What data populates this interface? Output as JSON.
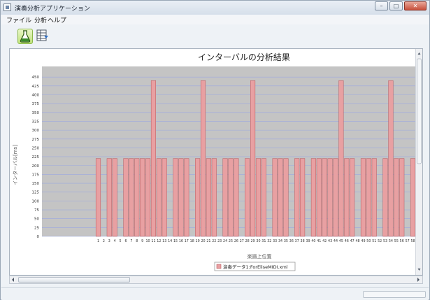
{
  "window": {
    "title": "演奏分析アプリケーション",
    "buttons": {
      "minimize": "–",
      "maximize": "□",
      "close": "✕"
    }
  },
  "menu": {
    "items": [
      "ファイル",
      "分析",
      "ヘルプ"
    ]
  },
  "toolbar": {
    "buttons": [
      {
        "icon": "flask-icon",
        "active": true
      },
      {
        "icon": "table-export-icon",
        "active": false
      }
    ]
  },
  "colors": {
    "bar_fill": "#e8a0a2",
    "bar_stroke": "#b85a5e",
    "plot_bg": "#c4c4c4",
    "grid": "#9ba8e0"
  },
  "chart_data": {
    "type": "bar",
    "title": "インターバルの分析結果",
    "xlabel": "楽譜上位置",
    "ylabel": "インターバル[ms]",
    "ylim": [
      0,
      480
    ],
    "y_ticks": [
      0,
      25,
      50,
      75,
      100,
      125,
      150,
      175,
      200,
      225,
      250,
      275,
      300,
      325,
      350,
      375,
      400,
      425,
      450
    ],
    "grid": true,
    "legend_position": "bottom",
    "series": [
      {
        "name": "演奏データ1:ForEliseMIDI.xml",
        "categories": [
          "1",
          "2",
          "3",
          "4",
          "5",
          "6",
          "7",
          "8",
          "9",
          "10",
          "11",
          "12",
          "13",
          "14",
          "15",
          "16",
          "17",
          "18",
          "19",
          "20",
          "21",
          "22",
          "23",
          "24",
          "25",
          "26",
          "27",
          "28",
          "29",
          "30",
          "31",
          "32",
          "33",
          "34",
          "35",
          "36",
          "37",
          "38",
          "39",
          "40",
          "41",
          "42",
          "43",
          "44",
          "45",
          "46",
          "47",
          "48",
          "49",
          "50",
          "51",
          "52",
          "53",
          "54",
          "55",
          "56",
          "57",
          "58"
        ],
        "values": [
          220,
          0,
          220,
          220,
          0,
          220,
          220,
          220,
          220,
          220,
          440,
          220,
          220,
          0,
          220,
          220,
          220,
          0,
          220,
          440,
          220,
          220,
          0,
          220,
          220,
          220,
          0,
          220,
          440,
          220,
          220,
          0,
          220,
          220,
          220,
          0,
          220,
          220,
          0,
          220,
          220,
          220,
          220,
          220,
          440,
          220,
          220,
          0,
          220,
          220,
          220,
          0,
          220,
          440,
          220,
          220,
          0,
          220
        ]
      }
    ]
  }
}
